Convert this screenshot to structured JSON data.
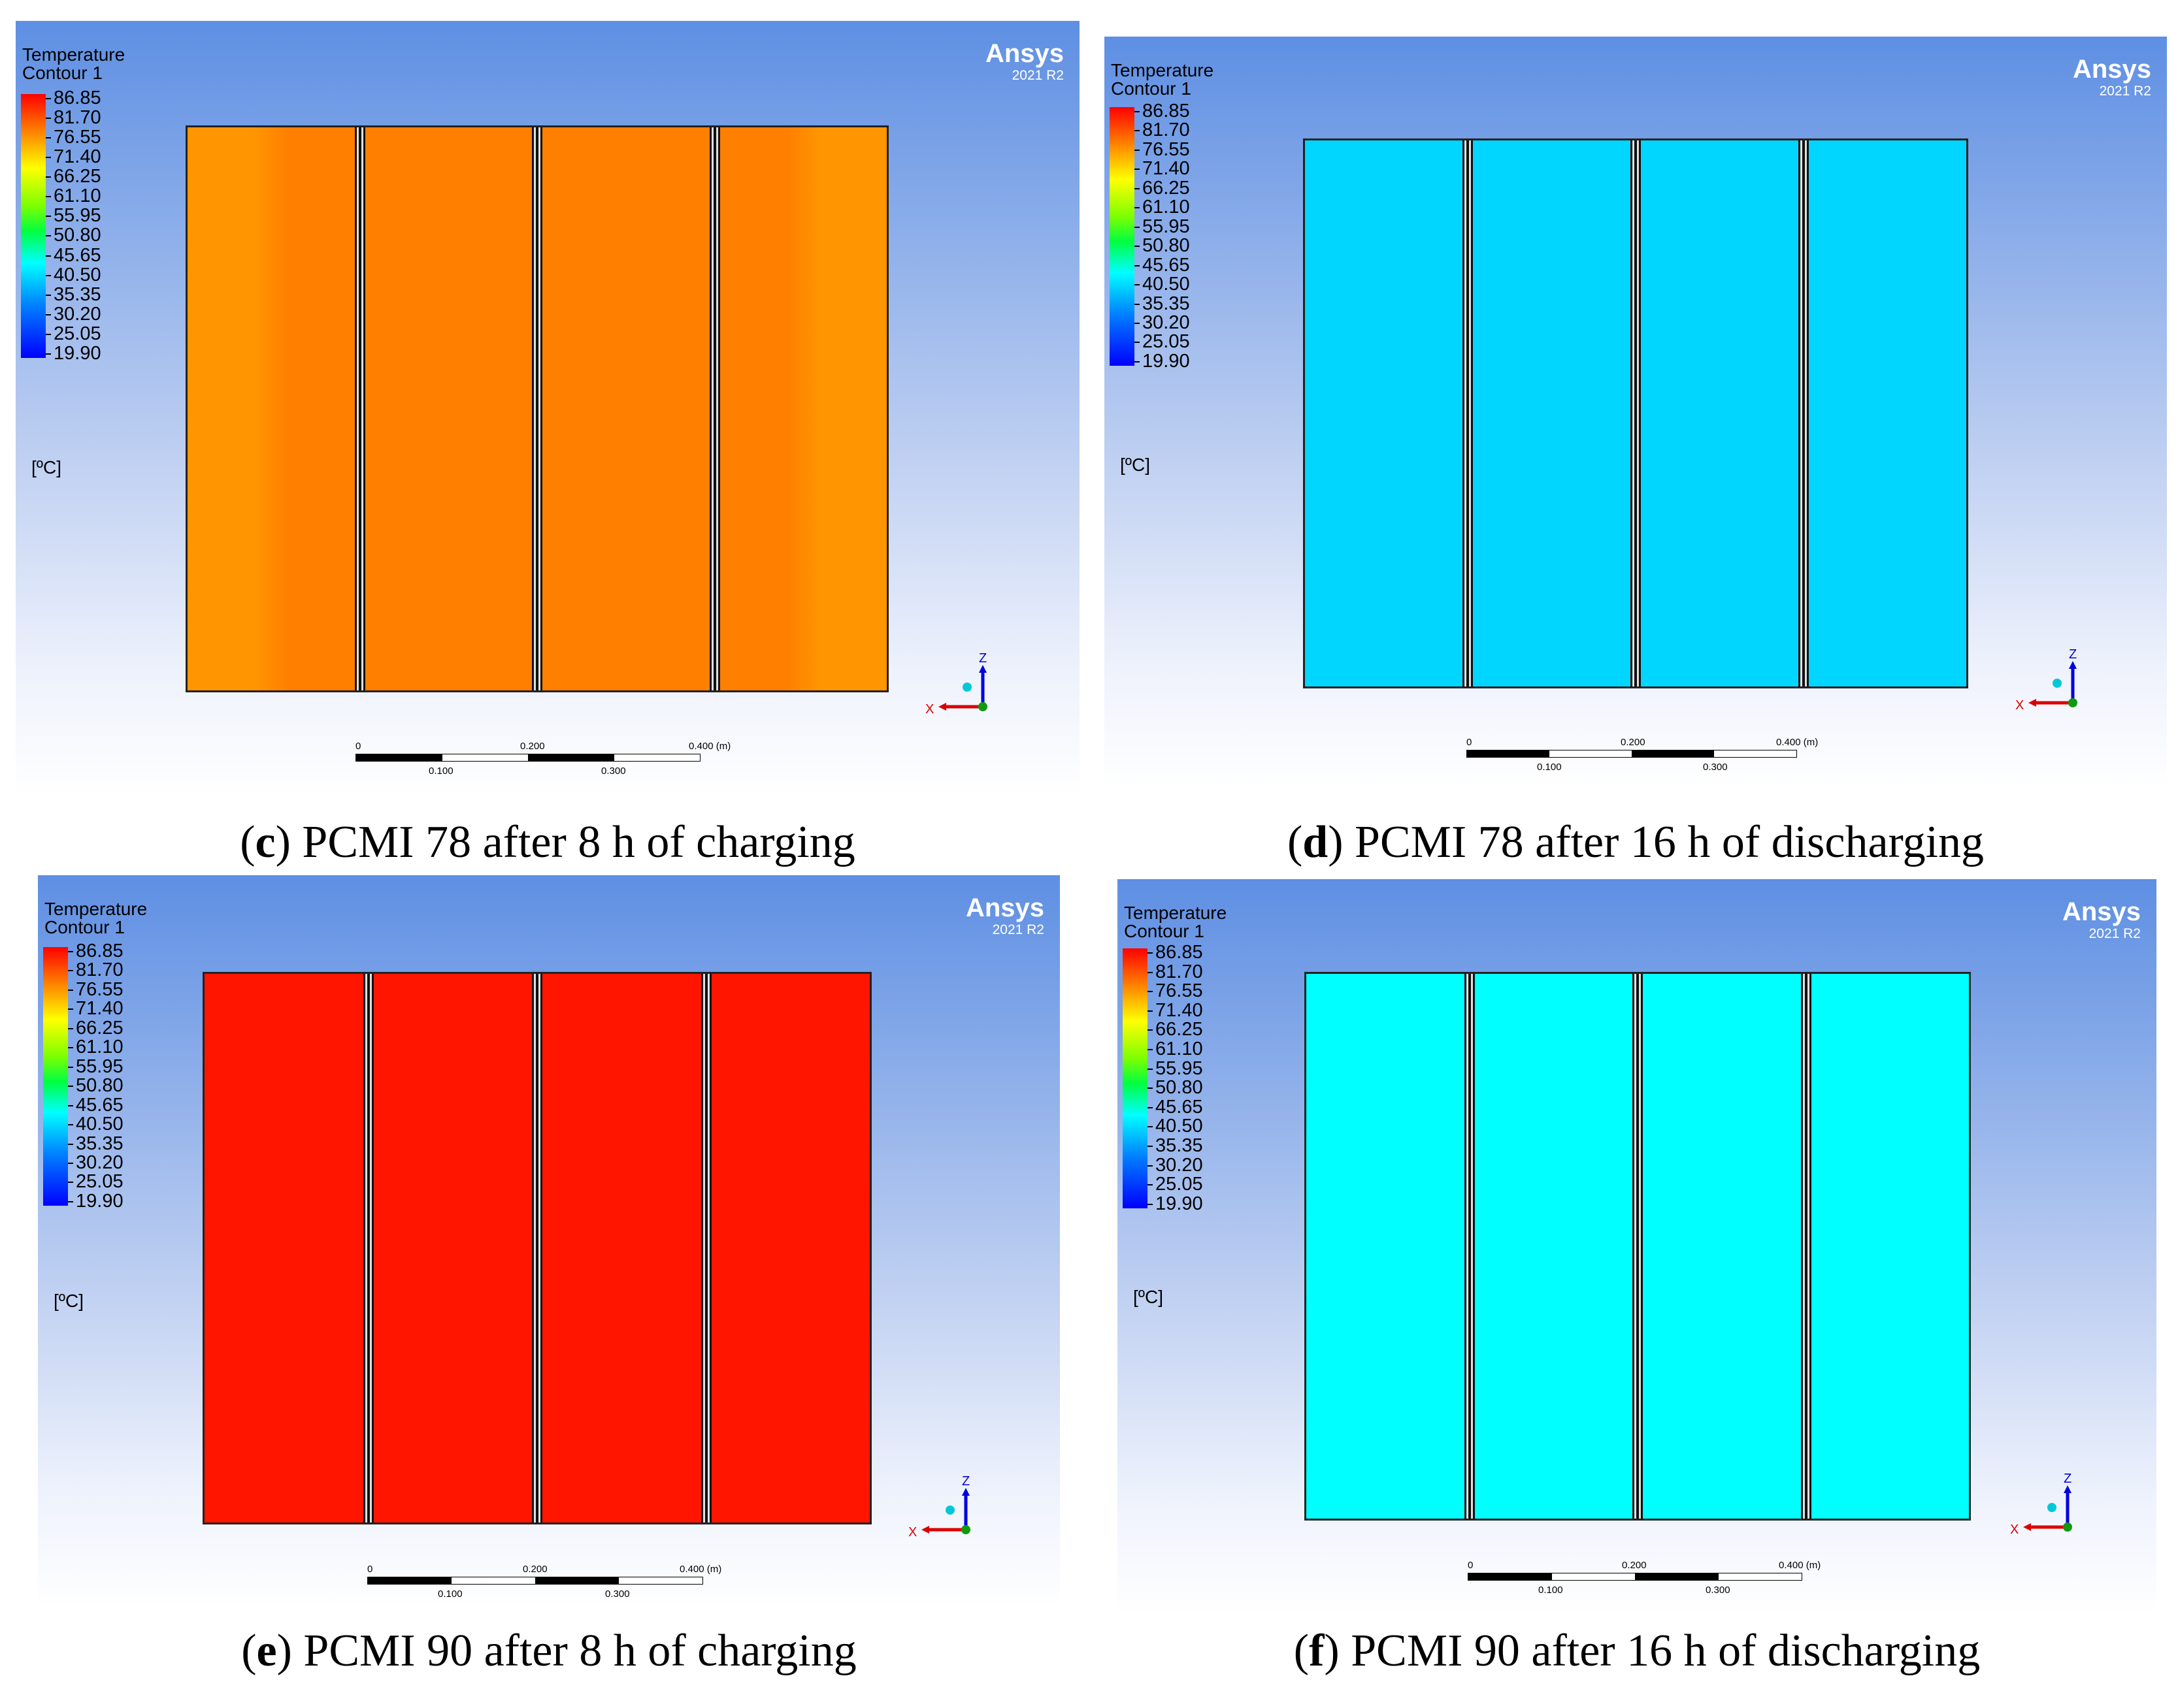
{
  "legend": {
    "title": "Temperature",
    "subtitle": "Contour 1",
    "unit": "[ºC]",
    "ticks": [
      "86.85",
      "81.70",
      "76.55",
      "71.40",
      "66.25",
      "61.10",
      "55.95",
      "50.80",
      "45.65",
      "40.50",
      "35.35",
      "30.20",
      "25.05",
      "19.90"
    ]
  },
  "brand": {
    "name": "Ansys",
    "version": "2021 R2"
  },
  "scale": {
    "top_labels": [
      "0",
      "0.200",
      "0.400  (m)"
    ],
    "bottom_labels": [
      "0.100",
      "0.300"
    ]
  },
  "axes": {
    "z_label": "Z",
    "x_label": "X"
  },
  "panels": [
    {
      "letter": "c",
      "caption": ") PCMI 78 after 8 h of charging",
      "fill_color": "#ff7f00",
      "edge_color": "#ff9500"
    },
    {
      "letter": "d",
      "caption": ") PCMI 78 after 16 h of discharging",
      "fill_color": "#00d6ff",
      "edge_color": "#00d6ff"
    },
    {
      "letter": "e",
      "caption": ") PCMI 90 after 8 h of charging",
      "fill_color": "#ff1500",
      "edge_color": "#ff1500"
    },
    {
      "letter": "f",
      "caption": ") PCMI 90 after 16 h of discharging",
      "fill_color": "#00ffff",
      "edge_color": "#00ffff"
    }
  ]
}
